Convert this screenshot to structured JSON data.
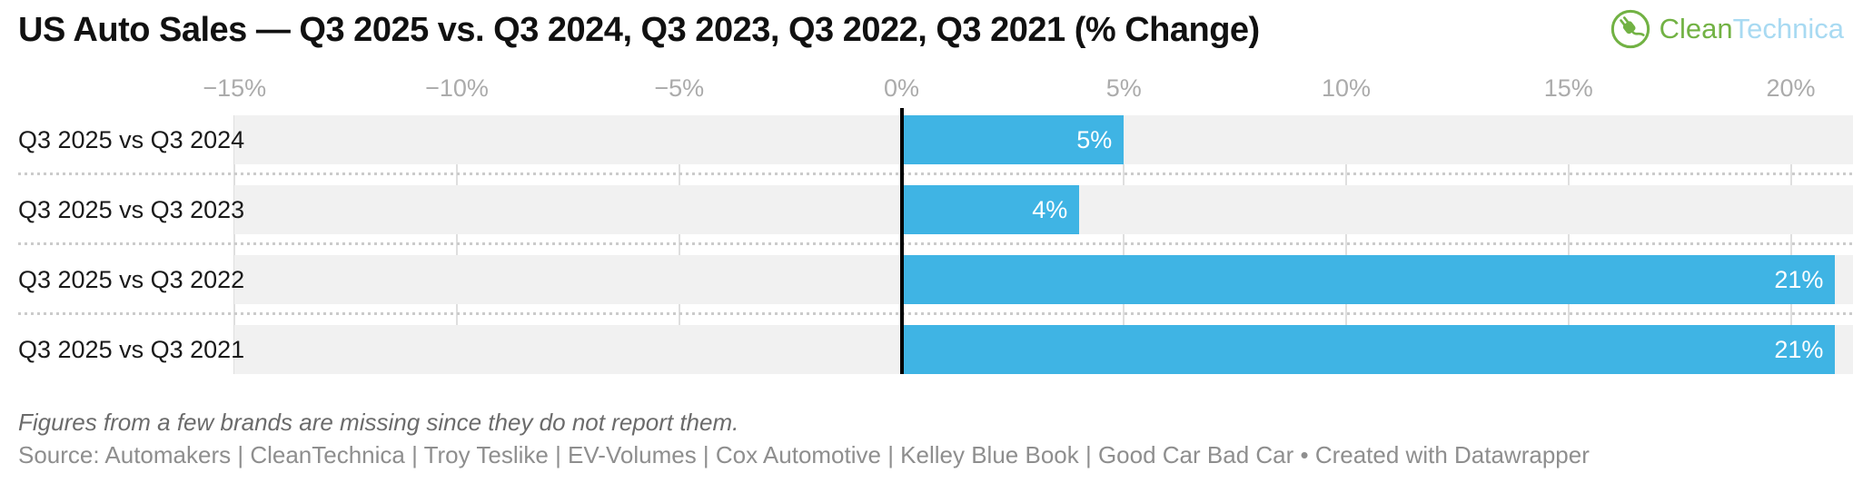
{
  "header": {
    "title": "US Auto Sales — Q3 2025 vs. Q3 2024, Q3 2023, Q3 2022, Q3 2021 (% Change)"
  },
  "logo": {
    "icon": "cleantechnica-plug-icon",
    "clean": "Clean",
    "technica": "Technica",
    "green": "#72b244",
    "light_blue": "#a8daf2"
  },
  "chart_data": {
    "type": "bar",
    "orientation": "horizontal",
    "categories": [
      "Q3 2025 vs Q3 2024",
      "Q3 2025 vs Q3 2023",
      "Q3 2025 vs Q3 2022",
      "Q3 2025 vs Q3 2021"
    ],
    "values": [
      5,
      4,
      21,
      21
    ],
    "value_labels": [
      "5%",
      "4%",
      "21%",
      "21%"
    ],
    "x_ticks": [
      -15,
      -10,
      -5,
      0,
      5,
      10,
      15,
      20
    ],
    "x_tick_labels": [
      "−15%",
      "−10%",
      "−5%",
      "0%",
      "5%",
      "10%",
      "15%",
      "20%"
    ],
    "xlim": [
      -15,
      21.4
    ],
    "grid": true,
    "legend": "none",
    "bar_color": "#3fb4e4",
    "track_color": "#f1f1f1",
    "zero_line_color": "#000000"
  },
  "notes": {
    "footnote": "Figures from a few brands are missing since they do not report them.",
    "source": "Source: Automakers | CleanTechnica | Troy Teslike | EV-Volumes | Cox Automotive | Kelley Blue Book | Good Car Bad Car • Created with Datawrapper"
  }
}
